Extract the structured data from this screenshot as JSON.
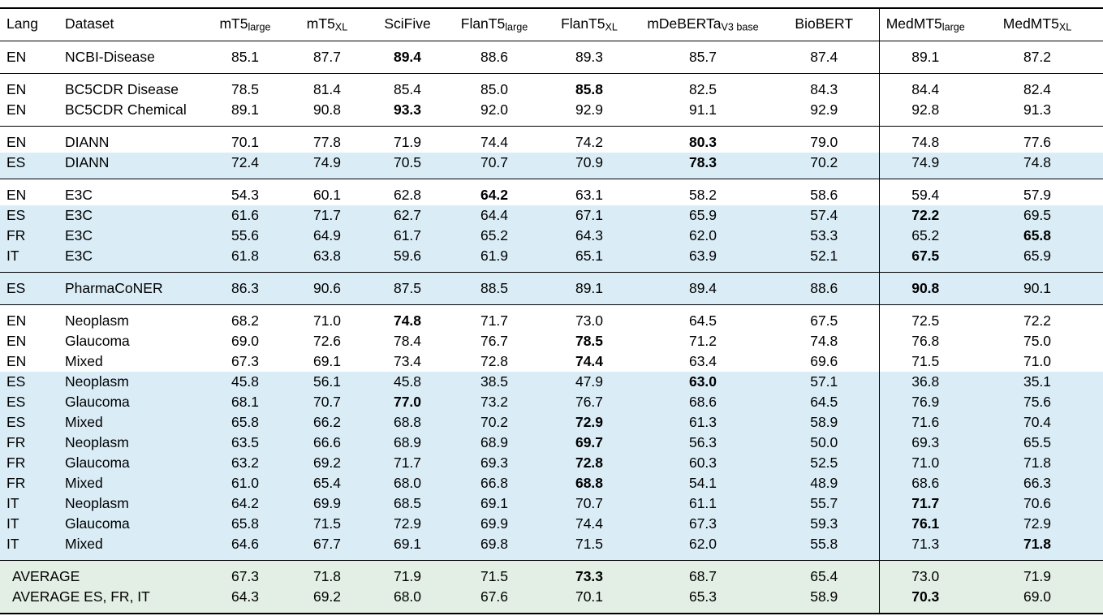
{
  "colors": {
    "row_highlight_blue": "#daedf7",
    "row_highlight_green": "#e3efe5",
    "rule_color": "#000000",
    "text_color": "#000000",
    "background": "#ffffff"
  },
  "table": {
    "columns": [
      {
        "label": "Lang",
        "sub": ""
      },
      {
        "label": "Dataset",
        "sub": ""
      },
      {
        "label": "mT5",
        "sub": "large"
      },
      {
        "label": "mT5",
        "sub": "XL"
      },
      {
        "label": "SciFive",
        "sub": ""
      },
      {
        "label": "FlanT5",
        "sub": "large"
      },
      {
        "label": "FlanT5",
        "sub": "XL"
      },
      {
        "label": "mDeBERTa",
        "sub": "V3 base"
      },
      {
        "label": "BioBERT",
        "sub": ""
      },
      {
        "label": "MedMT5",
        "sub": "large"
      },
      {
        "label": "MedMT5",
        "sub": "XL"
      }
    ],
    "groups": [
      {
        "rows": [
          {
            "lang": "EN",
            "dataset": "NCBI-Disease",
            "highlight": "white",
            "values": [
              "85.1",
              "87.7",
              "89.4",
              "88.6",
              "89.3",
              "85.7",
              "87.4",
              "89.1",
              "87.2"
            ],
            "bold": [
              2
            ]
          }
        ]
      },
      {
        "rows": [
          {
            "lang": "EN",
            "dataset": "BC5CDR Disease",
            "highlight": "white",
            "values": [
              "78.5",
              "81.4",
              "85.4",
              "85.0",
              "85.8",
              "82.5",
              "84.3",
              "84.4",
              "82.4"
            ],
            "bold": [
              4
            ]
          },
          {
            "lang": "EN",
            "dataset": "BC5CDR Chemical",
            "highlight": "white",
            "values": [
              "89.1",
              "90.8",
              "93.3",
              "92.0",
              "92.9",
              "91.1",
              "92.9",
              "92.8",
              "91.3"
            ],
            "bold": [
              2
            ]
          }
        ]
      },
      {
        "rows": [
          {
            "lang": "EN",
            "dataset": "DIANN",
            "highlight": "white",
            "values": [
              "70.1",
              "77.8",
              "71.9",
              "74.4",
              "74.2",
              "80.3",
              "79.0",
              "74.8",
              "77.6"
            ],
            "bold": [
              5
            ]
          },
          {
            "lang": "ES",
            "dataset": "DIANN",
            "highlight": "blue",
            "values": [
              "72.4",
              "74.9",
              "70.5",
              "70.7",
              "70.9",
              "78.3",
              "70.2",
              "74.9",
              "74.8"
            ],
            "bold": [
              5
            ]
          }
        ]
      },
      {
        "rows": [
          {
            "lang": "EN",
            "dataset": "E3C",
            "highlight": "white",
            "values": [
              "54.3",
              "60.1",
              "62.8",
              "64.2",
              "63.1",
              "58.2",
              "58.6",
              "59.4",
              "57.9"
            ],
            "bold": [
              3
            ]
          },
          {
            "lang": "ES",
            "dataset": "E3C",
            "highlight": "blue",
            "values": [
              "61.6",
              "71.7",
              "62.7",
              "64.4",
              "67.1",
              "65.9",
              "57.4",
              "72.2",
              "69.5"
            ],
            "bold": [
              7
            ]
          },
          {
            "lang": "FR",
            "dataset": "E3C",
            "highlight": "blue",
            "values": [
              "55.6",
              "64.9",
              "61.7",
              "65.2",
              "64.3",
              "62.0",
              "53.3",
              "65.2",
              "65.8"
            ],
            "bold": [
              8
            ]
          },
          {
            "lang": "IT",
            "dataset": "E3C",
            "highlight": "blue",
            "values": [
              "61.8",
              "63.8",
              "59.6",
              "61.9",
              "65.1",
              "63.9",
              "52.1",
              "67.5",
              "65.9"
            ],
            "bold": [
              7
            ]
          }
        ]
      },
      {
        "rows": [
          {
            "lang": "ES",
            "dataset": "PharmaCoNER",
            "highlight": "blue",
            "values": [
              "86.3",
              "90.6",
              "87.5",
              "88.5",
              "89.1",
              "89.4",
              "88.6",
              "90.8",
              "90.1"
            ],
            "bold": [
              7
            ]
          }
        ]
      },
      {
        "rows": [
          {
            "lang": "EN",
            "dataset": "Neoplasm",
            "highlight": "white",
            "values": [
              "68.2",
              "71.0",
              "74.8",
              "71.7",
              "73.0",
              "64.5",
              "67.5",
              "72.5",
              "72.2"
            ],
            "bold": [
              2
            ]
          },
          {
            "lang": "EN",
            "dataset": "Glaucoma",
            "highlight": "white",
            "values": [
              "69.0",
              "72.6",
              "78.4",
              "76.7",
              "78.5",
              "71.2",
              "74.8",
              "76.8",
              "75.0"
            ],
            "bold": [
              4
            ]
          },
          {
            "lang": "EN",
            "dataset": "Mixed",
            "highlight": "white",
            "values": [
              "67.3",
              "69.1",
              "73.4",
              "72.8",
              "74.4",
              "63.4",
              "69.6",
              "71.5",
              "71.0"
            ],
            "bold": [
              4
            ]
          },
          {
            "lang": "ES",
            "dataset": "Neoplasm",
            "highlight": "blue",
            "values": [
              "45.8",
              "56.1",
              "45.8",
              "38.5",
              "47.9",
              "63.0",
              "57.1",
              "36.8",
              "35.1"
            ],
            "bold": [
              5
            ]
          },
          {
            "lang": "ES",
            "dataset": "Glaucoma",
            "highlight": "blue",
            "values": [
              "68.1",
              "70.7",
              "77.0",
              "73.2",
              "76.7",
              "68.6",
              "64.5",
              "76.9",
              "75.6"
            ],
            "bold": [
              2
            ]
          },
          {
            "lang": "ES",
            "dataset": "Mixed",
            "highlight": "blue",
            "values": [
              "65.8",
              "66.2",
              "68.8",
              "70.2",
              "72.9",
              "61.3",
              "58.9",
              "71.6",
              "70.4"
            ],
            "bold": [
              4
            ]
          },
          {
            "lang": "FR",
            "dataset": "Neoplasm",
            "highlight": "blue",
            "values": [
              "63.5",
              "66.6",
              "68.9",
              "68.9",
              "69.7",
              "56.3",
              "50.0",
              "69.3",
              "65.5"
            ],
            "bold": [
              4
            ]
          },
          {
            "lang": "FR",
            "dataset": "Glaucoma",
            "highlight": "blue",
            "values": [
              "63.2",
              "69.2",
              "71.7",
              "69.3",
              "72.8",
              "60.3",
              "52.5",
              "71.0",
              "71.8"
            ],
            "bold": [
              4
            ]
          },
          {
            "lang": "FR",
            "dataset": "Mixed",
            "highlight": "blue",
            "values": [
              "61.0",
              "65.4",
              "68.0",
              "66.8",
              "68.8",
              "54.1",
              "48.9",
              "68.6",
              "66.3"
            ],
            "bold": [
              4
            ]
          },
          {
            "lang": "IT",
            "dataset": "Neoplasm",
            "highlight": "blue",
            "values": [
              "64.2",
              "69.9",
              "68.5",
              "69.1",
              "70.7",
              "61.1",
              "55.7",
              "71.7",
              "70.6"
            ],
            "bold": [
              7
            ]
          },
          {
            "lang": "IT",
            "dataset": "Glaucoma",
            "highlight": "blue",
            "values": [
              "65.8",
              "71.5",
              "72.9",
              "69.9",
              "74.4",
              "67.3",
              "59.3",
              "76.1",
              "72.9"
            ],
            "bold": [
              7
            ]
          },
          {
            "lang": "IT",
            "dataset": "Mixed",
            "highlight": "blue",
            "values": [
              "64.6",
              "67.7",
              "69.1",
              "69.8",
              "71.5",
              "62.0",
              "55.8",
              "71.3",
              "71.8"
            ],
            "bold": [
              8
            ]
          }
        ]
      },
      {
        "rows": [
          {
            "label": "AVERAGE",
            "highlight": "green",
            "values": [
              "67.3",
              "71.8",
              "71.9",
              "71.5",
              "73.3",
              "68.7",
              "65.4",
              "73.0",
              "71.9"
            ],
            "bold": [
              4
            ]
          },
          {
            "label": "AVERAGE ES, FR, IT",
            "highlight": "green",
            "values": [
              "64.3",
              "69.2",
              "68.0",
              "67.6",
              "70.1",
              "65.3",
              "58.9",
              "70.3",
              "69.0"
            ],
            "bold": [
              7
            ]
          }
        ]
      }
    ]
  }
}
